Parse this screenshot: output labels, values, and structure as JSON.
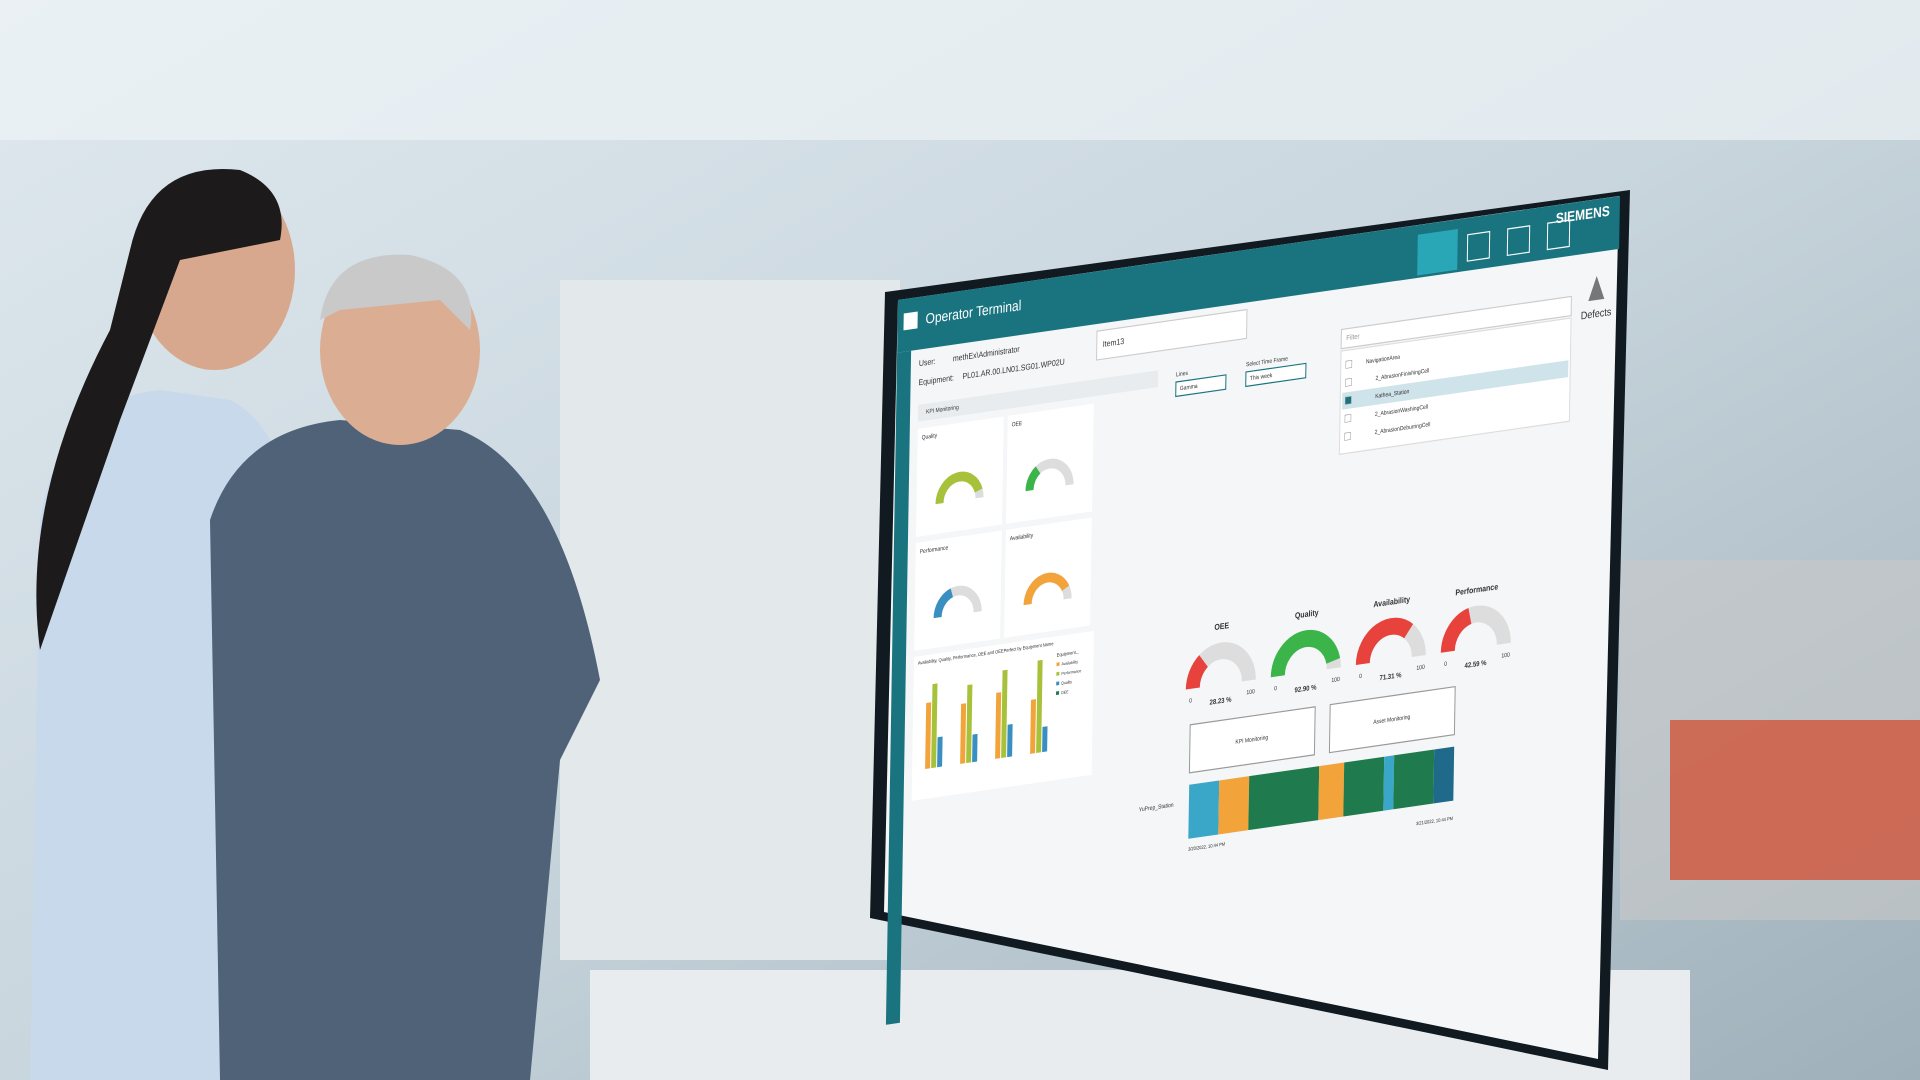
{
  "header": {
    "brand": "SIEMENS",
    "title": "Operator Terminal"
  },
  "info": {
    "user_label": "User:",
    "user": "methEx\\Administrator",
    "equipment_label": "Equipment:",
    "equipment": "PL01.AR.00.LN01.SG01.WP02U",
    "item": "Item13",
    "filter": "Filter",
    "line_label": "Lines",
    "line_value": "Gamma",
    "time_label": "Select Time Frame",
    "time_value": "This week"
  },
  "sidebar": {
    "defects": "Defects"
  },
  "kpi_panel": {
    "title": "KPI Monitoring",
    "small_gauges": [
      "Quality",
      "OEE",
      "Performance",
      "Availability"
    ],
    "chart_title": "Availability, Quality, Performance, OEE and OEEPerfect by Equipment Name",
    "legend_title": "Equipment...",
    "legend": [
      "Availability",
      "Performance",
      "Quality",
      "OEE"
    ]
  },
  "tree": [
    "NavigationArea",
    "2_AbrasionFinishingCell",
    "Kathea_Station",
    "2_AbrasionWashingCell",
    "2_AbrasionDeburringCell"
  ],
  "gauges": [
    {
      "label": "OEE",
      "value": "28.23 %",
      "color": "#e8423c"
    },
    {
      "label": "Quality",
      "value": "92.90 %",
      "color": "#3bb54a"
    },
    {
      "label": "Availability",
      "value": "71.31 %",
      "color": "#e8423c"
    },
    {
      "label": "Performance",
      "value": "42.59 %",
      "color": "#e8423c"
    }
  ],
  "scale": [
    "0",
    "100"
  ],
  "buttons": [
    "KPI Monitoring",
    "Asset Monitoring"
  ],
  "timeline": {
    "station": "YuPrep_Station",
    "start": "3/20/2022, 10:44 PM",
    "end": "3/21/2022, 10:44 PM"
  }
}
